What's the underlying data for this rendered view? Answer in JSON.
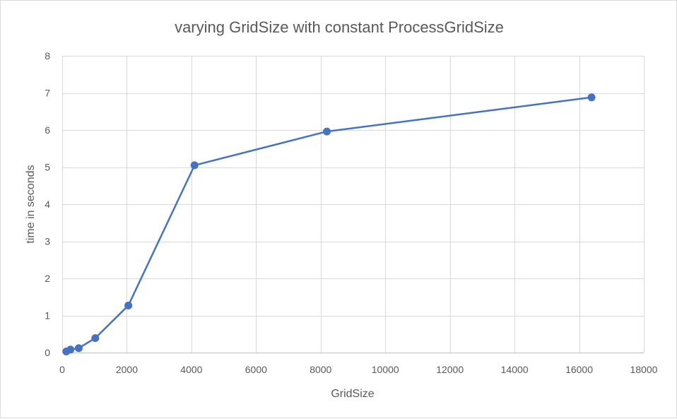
{
  "chart_data": {
    "type": "scatter",
    "title": "varying GridSize with constant ProcessGridSize",
    "xlabel": "GridSize",
    "ylabel": "time in seconds",
    "xlim": [
      0,
      18000
    ],
    "ylim": [
      0,
      8
    ],
    "x_ticks": [
      "0",
      "2000",
      "4000",
      "6000",
      "8000",
      "10000",
      "12000",
      "14000",
      "16000",
      "18000"
    ],
    "y_ticks": [
      "0",
      "1",
      "2",
      "3",
      "4",
      "5",
      "6",
      "7",
      "8"
    ],
    "grid": true,
    "legend": "none",
    "line_style": "lines-with-markers",
    "series": [
      {
        "color": "#4472c4",
        "x": [
          128,
          256,
          512,
          1024,
          2048,
          4096,
          8192,
          16384
        ],
        "y": [
          0.03,
          0.08,
          0.12,
          0.39,
          1.27,
          5.05,
          5.96,
          6.88
        ]
      }
    ]
  }
}
